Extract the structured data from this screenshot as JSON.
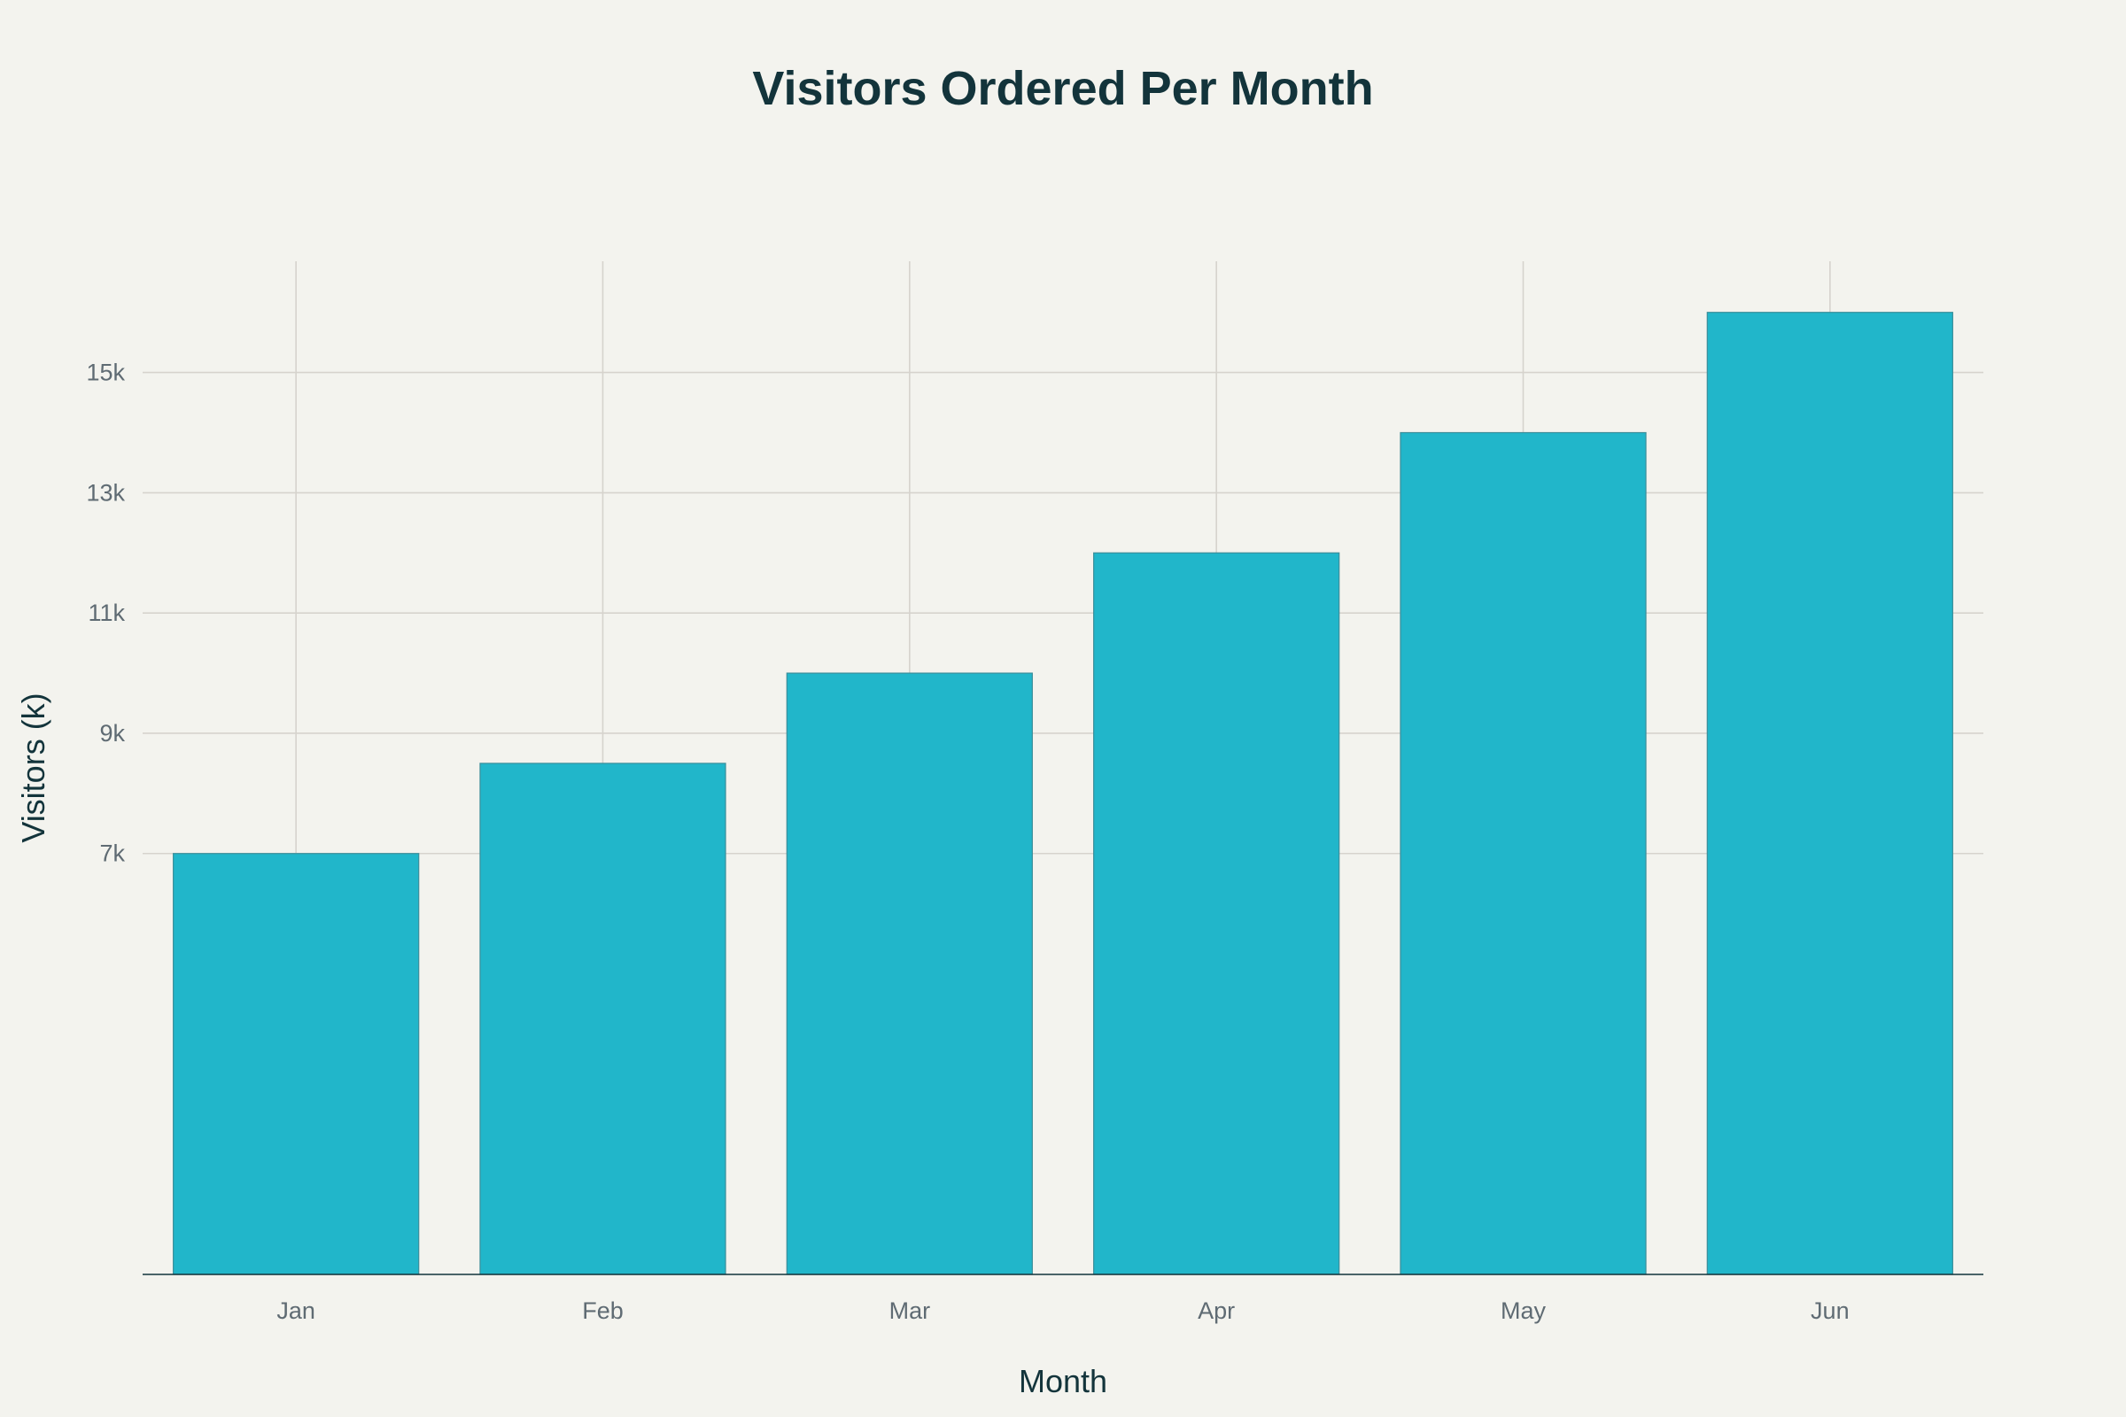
{
  "chart_data": {
    "type": "bar",
    "title": "Visitors Ordered Per Month",
    "xlabel": "Month",
    "ylabel": "Visitors (k)",
    "categories": [
      "Jan",
      "Feb",
      "Mar",
      "Apr",
      "May",
      "Jun"
    ],
    "values": [
      7000,
      8500,
      10000,
      12000,
      14000,
      16000
    ],
    "ylim": [
      0,
      16850
    ],
    "yticks": [
      7000,
      9000,
      11000,
      13000,
      15000
    ],
    "ytick_labels": [
      "7k",
      "9k",
      "11k",
      "13k",
      "15k"
    ],
    "grid": true,
    "colors": {
      "bar": "#21b6ca",
      "background": "#f3f3ee",
      "title": "#13343b"
    }
  }
}
